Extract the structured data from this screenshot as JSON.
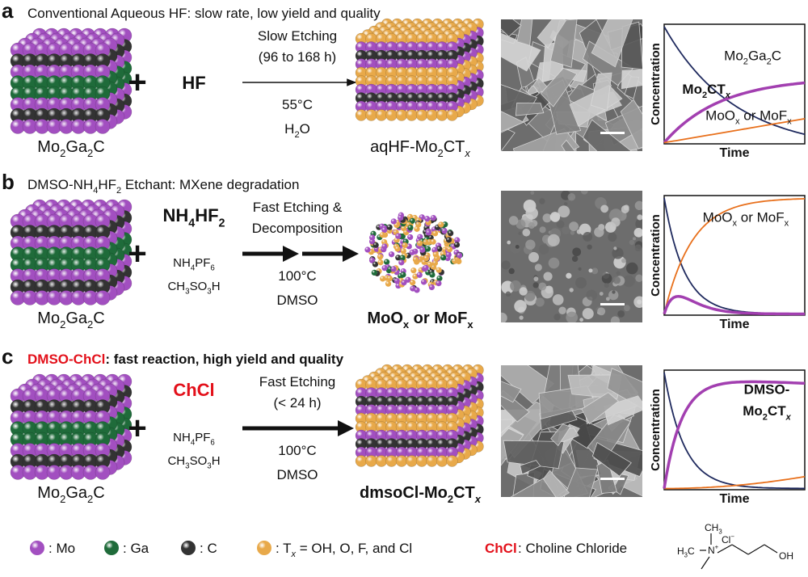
{
  "panels": [
    {
      "label": "a",
      "heading": [
        {
          "text": "Conventional Aqueous HF: slow rate, low yield and quality"
        }
      ],
      "reactant": [
        {
          "text": "Mo"
        },
        {
          "text": "2",
          "style": "sub"
        },
        {
          "text": "Ga"
        },
        {
          "text": "2",
          "style": "sub"
        },
        {
          "text": "C"
        }
      ],
      "reagent": [
        {
          "text": "HF"
        }
      ],
      "additives": [],
      "conditions_above": [
        "Slow Etching",
        "(96 to 168 h)"
      ],
      "conditions_below": [
        [
          {
            "text": "55°C"
          }
        ],
        [
          {
            "text": "H"
          },
          {
            "text": "2",
            "style": "sub"
          },
          {
            "text": "O"
          }
        ]
      ],
      "product": [
        {
          "text": "aqHF-Mo"
        },
        {
          "text": "2",
          "style": "sub"
        },
        {
          "text": "CT"
        },
        {
          "text": "x",
          "style": "italic-sub"
        }
      ],
      "plot": {
        "y_label": "Concentration",
        "x_label": "Time",
        "curve_labels": [
          {
            "color": "#1f2a5e",
            "segments": [
              {
                "text": "Mo"
              },
              {
                "text": "2",
                "style": "sub"
              },
              {
                "text": "Ga"
              },
              {
                "text": "2",
                "style": "sub"
              },
              {
                "text": "C"
              }
            ]
          },
          {
            "color": "#a23fb0",
            "segments": [
              {
                "text": "Mo"
              },
              {
                "text": "2",
                "style": "sub"
              },
              {
                "text": "CT"
              },
              {
                "text": "x",
                "style": "italic-sub"
              }
            ]
          },
          {
            "color": "#e8701c",
            "segments": [
              {
                "text": "MoO"
              },
              {
                "text": "x",
                "style": "sub"
              },
              {
                "text": " or MoF"
              },
              {
                "text": "x",
                "style": "sub"
              }
            ]
          }
        ]
      }
    },
    {
      "label": "b",
      "heading": [
        {
          "text": "DMSO-NH"
        },
        {
          "text": "4",
          "style": "sub"
        },
        {
          "text": "HF"
        },
        {
          "text": "2",
          "style": "sub"
        },
        {
          "text": " Etchant: MXene degradation"
        }
      ],
      "reactant": [
        {
          "text": "Mo"
        },
        {
          "text": "2",
          "style": "sub"
        },
        {
          "text": "Ga"
        },
        {
          "text": "2",
          "style": "sub"
        },
        {
          "text": "C"
        }
      ],
      "reagent": [
        {
          "text": "NH"
        },
        {
          "text": "4",
          "style": "sub"
        },
        {
          "text": "HF"
        },
        {
          "text": "2",
          "style": "sub"
        }
      ],
      "additives": [
        [
          {
            "text": "NH"
          },
          {
            "text": "4",
            "style": "sub"
          },
          {
            "text": "PF"
          },
          {
            "text": "6",
            "style": "sub"
          }
        ],
        [
          {
            "text": "CH"
          },
          {
            "text": "3",
            "style": "sub"
          },
          {
            "text": "SO"
          },
          {
            "text": "3",
            "style": "sub"
          },
          {
            "text": "H"
          }
        ]
      ],
      "conditions_above": [
        "Fast Etching &",
        "Decomposition"
      ],
      "conditions_below": [
        [
          {
            "text": "100°C"
          }
        ],
        [
          {
            "text": "DMSO"
          }
        ]
      ],
      "product": [
        {
          "text": "MoO"
        },
        {
          "text": "x",
          "style": "sub"
        },
        {
          "text": " or MoF"
        },
        {
          "text": "x",
          "style": "sub"
        }
      ],
      "plot": {
        "y_label": "Concentration",
        "x_label": "Time",
        "curve_labels": [
          {
            "color": "#e8701c",
            "segments": [
              {
                "text": "MoO"
              },
              {
                "text": "x",
                "style": "sub"
              },
              {
                "text": " or MoF"
              },
              {
                "text": "x",
                "style": "sub"
              }
            ]
          }
        ]
      }
    },
    {
      "label": "c",
      "heading": [
        {
          "text": "DMSO-ChCl",
          "color": "#e3101a"
        },
        {
          "text": ": fast reaction, high yield and quality"
        }
      ],
      "reactant": [
        {
          "text": "Mo"
        },
        {
          "text": "2",
          "style": "sub"
        },
        {
          "text": "Ga"
        },
        {
          "text": "2",
          "style": "sub"
        },
        {
          "text": "C"
        }
      ],
      "reagent": [
        {
          "text": "ChCl",
          "color": "#e3101a"
        }
      ],
      "additives": [
        [
          {
            "text": "NH"
          },
          {
            "text": "4",
            "style": "sub"
          },
          {
            "text": "PF"
          },
          {
            "text": "6",
            "style": "sub"
          }
        ],
        [
          {
            "text": "CH"
          },
          {
            "text": "3",
            "style": "sub"
          },
          {
            "text": "SO"
          },
          {
            "text": "3",
            "style": "sub"
          },
          {
            "text": "H"
          }
        ]
      ],
      "conditions_above": [
        "Fast Etching",
        "(< 24 h)"
      ],
      "conditions_below": [
        [
          {
            "text": "100°C"
          }
        ],
        [
          {
            "text": "DMSO"
          }
        ]
      ],
      "product": [
        {
          "text": "dmsoCl-Mo"
        },
        {
          "text": "2",
          "style": "sub"
        },
        {
          "text": "CT"
        },
        {
          "text": "x",
          "style": "italic-sub"
        }
      ],
      "plot": {
        "y_label": "Concentration",
        "x_label": "Time",
        "curve_labels": [
          {
            "color": "#a23fb0",
            "segments": [
              {
                "text": "DMSO-"
              }
            ]
          },
          {
            "color": "#a23fb0",
            "segments": [
              {
                "text": "Mo"
              },
              {
                "text": "2",
                "style": "sub"
              },
              {
                "text": "CT"
              },
              {
                "text": "x",
                "style": "italic-sub"
              }
            ]
          }
        ]
      }
    }
  ],
  "legend": {
    "items": [
      {
        "color": "#a24fc0",
        "label": [
          {
            "text": ": Mo"
          }
        ]
      },
      {
        "color": "#1f6b3a",
        "label": [
          {
            "text": ": Ga"
          }
        ]
      },
      {
        "color": "#333333",
        "label": [
          {
            "text": ": C"
          }
        ]
      },
      {
        "color": "#e8a94a",
        "label": [
          {
            "text": ": T"
          },
          {
            "text": "x",
            "style": "italic-sub"
          },
          {
            "text": " = OH, O, F, and Cl"
          }
        ]
      }
    ],
    "abbreviation": [
      {
        "text": "ChCl",
        "color": "#e3101a"
      }
    ],
    "definition": [
      {
        "text": ": Choline Chloride"
      }
    ],
    "structure": {
      "methyl_top": [
        {
          "text": "CH"
        },
        {
          "text": "3",
          "style": "sub"
        }
      ],
      "methyl_left": [
        {
          "text": "H"
        },
        {
          "text": "3",
          "style": "sub"
        },
        {
          "text": "C"
        }
      ],
      "nitrogen": [
        {
          "text": "N"
        },
        {
          "text": "+",
          "style": "sup"
        }
      ],
      "counterion": [
        {
          "text": "Cl"
        },
        {
          "text": "−",
          "style": "sup"
        }
      ],
      "hydroxyl": [
        {
          "text": "OH"
        }
      ]
    }
  }
}
